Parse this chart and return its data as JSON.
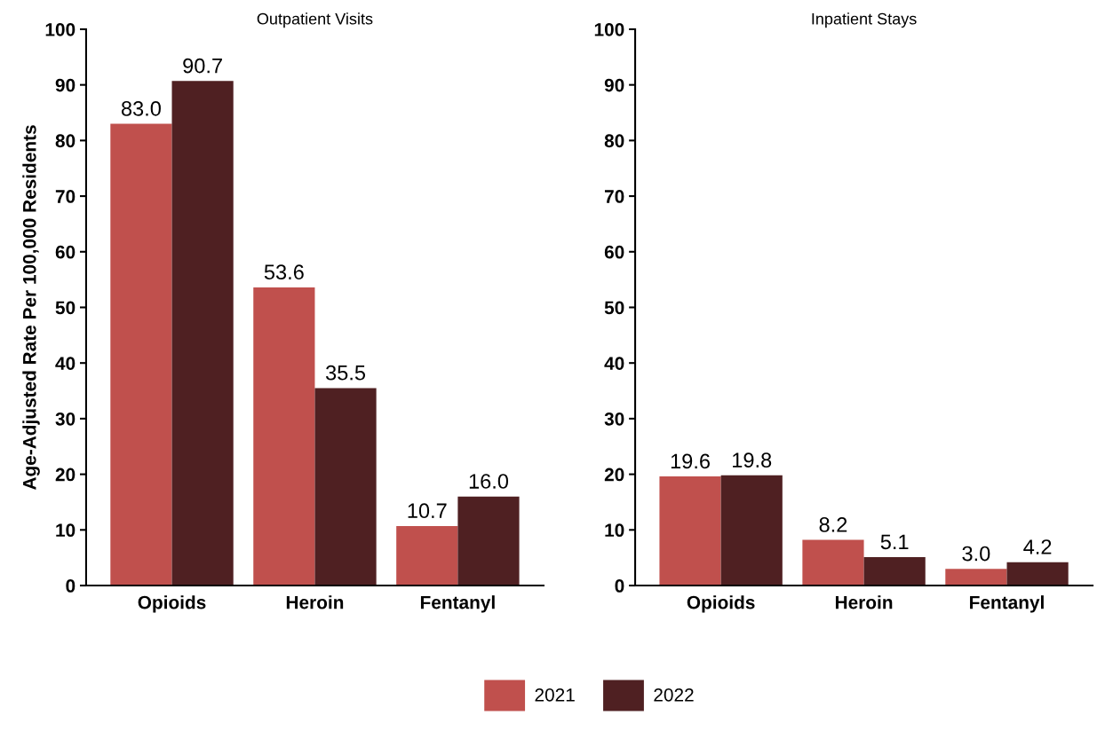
{
  "chart_data": [
    {
      "type": "bar",
      "title": "Outpatient Visits",
      "ylabel": "Age-Adjusted Rate Per 100,000 Residents",
      "categories": [
        "Opioids",
        "Heroin",
        "Fentanyl"
      ],
      "series": [
        {
          "name": "2021",
          "color": "#c0504d",
          "values": [
            83.0,
            53.6,
            10.7
          ],
          "value_labels": [
            "83.0",
            "53.6",
            "10.7"
          ]
        },
        {
          "name": "2022",
          "color": "#4f2022",
          "values": [
            90.7,
            35.5,
            16.0
          ],
          "value_labels": [
            "90.7",
            "35.5",
            "16.0"
          ]
        }
      ],
      "ylim": [
        0,
        100
      ],
      "yticks": [
        0,
        10,
        20,
        30,
        40,
        50,
        60,
        70,
        80,
        90,
        100
      ],
      "grid": false,
      "legend": "bottom"
    },
    {
      "type": "bar",
      "title": "Inpatient Stays",
      "categories": [
        "Opioids",
        "Heroin",
        "Fentanyl"
      ],
      "series": [
        {
          "color": "#c0504d",
          "values": [
            19.6,
            8.2,
            3.0
          ],
          "value_labels": [
            "19.6",
            "8.2",
            "3.0"
          ]
        },
        {
          "color": "#4f2022",
          "values": [
            19.8,
            5.1,
            4.2
          ],
          "value_labels": [
            "19.8",
            "5.1",
            "4.2"
          ]
        }
      ],
      "ylim": [
        0,
        100
      ],
      "yticks": [
        0,
        10,
        20,
        30,
        40,
        50,
        60,
        70,
        80,
        90,
        100
      ],
      "grid": false
    }
  ]
}
